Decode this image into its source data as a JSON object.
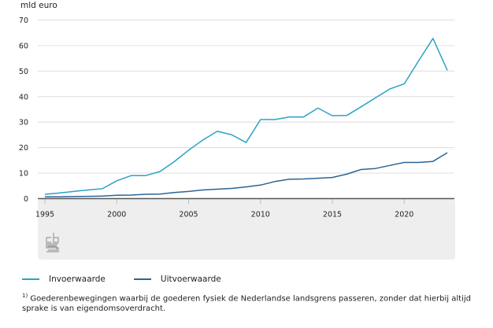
{
  "chart_data": {
    "type": "line",
    "title": "",
    "ylabel": "mld euro",
    "xlabel": "",
    "ylim": [
      0,
      70
    ],
    "yticks": [
      0,
      10,
      20,
      30,
      40,
      50,
      60,
      70
    ],
    "xlim": [
      1995,
      2023
    ],
    "xticks": [
      1995,
      2000,
      2005,
      2010,
      2015,
      2020
    ],
    "grid": true,
    "legend_position": "bottom-left",
    "x": [
      1995,
      1996,
      1997,
      1998,
      1999,
      2000,
      2001,
      2002,
      2003,
      2004,
      2005,
      2006,
      2007,
      2008,
      2009,
      2010,
      2011,
      2012,
      2013,
      2014,
      2015,
      2016,
      2017,
      2018,
      2019,
      2020,
      2021,
      2022,
      2023
    ],
    "series": [
      {
        "name": "Invoerwaarde",
        "color": "#2aa3c4",
        "values": [
          1.7,
          2.2,
          2.8,
          3.4,
          3.9,
          7.0,
          9.0,
          9.0,
          10.6,
          14.5,
          19.0,
          23.0,
          26.4,
          25.0,
          22.0,
          31.0,
          31.0,
          32.0,
          32.0,
          35.5,
          32.5,
          32.6,
          36.0,
          39.5,
          43.0,
          45.0,
          54.0,
          62.8,
          50.3
        ]
      },
      {
        "name": "Uitvoerwaarde",
        "color": "#2b6496",
        "values": [
          0.7,
          0.7,
          0.8,
          0.9,
          1.0,
          1.3,
          1.4,
          1.7,
          1.8,
          2.4,
          2.8,
          3.4,
          3.7,
          4.0,
          4.6,
          5.3,
          6.7,
          7.6,
          7.7,
          8.0,
          8.3,
          9.6,
          11.4,
          11.8,
          13.0,
          14.2,
          14.2,
          14.6,
          18.0
        ]
      }
    ],
    "footnote_marker": "1)",
    "footnote": "Goederenbewegingen waarbij de goederen fysiek de Nederlandse landsgrens passeren, zonder dat hierbij altijd sprake is van eigendomsoverdracht."
  },
  "logo": {
    "name": "cbs-logo"
  }
}
